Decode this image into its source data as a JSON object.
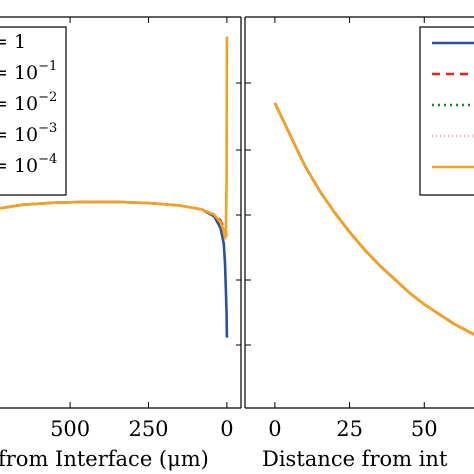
{
  "chart_data": [
    {
      "type": "line",
      "panel": "left",
      "xlabel": "from Interface (μm)",
      "x_ticks": [
        "500",
        "250",
        "0"
      ],
      "x_tick_values": [
        500,
        250,
        0
      ],
      "xlim": [
        730,
        -45
      ],
      "legend_placement": "top-left",
      "legend": [
        {
          "label_base": "= 1",
          "exponent": ""
        },
        {
          "label_base": "= 10",
          "exponent": "−1"
        },
        {
          "label_base": "= 10",
          "exponent": "−2"
        },
        {
          "label_base": "= 10",
          "exponent": "−3"
        },
        {
          "label_base": "= 10",
          "exponent": "−4"
        }
      ],
      "series": [
        {
          "color": "#2a4fa0",
          "dash": "",
          "x": [
            730,
            650,
            550,
            450,
            350,
            250,
            150,
            80,
            40,
            20,
            10,
            6,
            3,
            1,
            0
          ],
          "y": [
            0.51,
            0.52,
            0.525,
            0.527,
            0.527,
            0.524,
            0.518,
            0.508,
            0.49,
            0.46,
            0.42,
            0.37,
            0.3,
            0.24,
            0.18
          ]
        },
        {
          "color": "#e8231f",
          "dash": "8,6",
          "x": [
            730,
            650,
            550,
            450,
            350,
            250,
            150,
            80,
            40,
            20,
            10,
            5,
            2,
            0
          ],
          "y": [
            0.51,
            0.52,
            0.525,
            0.527,
            0.527,
            0.524,
            0.518,
            0.508,
            0.495,
            0.48,
            0.46,
            0.445,
            0.44,
            0.455
          ]
        },
        {
          "color": "#1a8a2a",
          "dash": "2,4",
          "x": [
            730,
            650,
            550,
            450,
            350,
            250,
            150,
            80,
            40,
            20,
            10,
            5,
            2,
            0
          ],
          "y": [
            0.51,
            0.52,
            0.525,
            0.527,
            0.527,
            0.524,
            0.518,
            0.508,
            0.495,
            0.475,
            0.455,
            0.44,
            0.45,
            0.66
          ]
        },
        {
          "color": "#f4a6b8",
          "dash": "1,3",
          "x": [
            730,
            650,
            550,
            450,
            350,
            250,
            150,
            80,
            40,
            20,
            10,
            5,
            2,
            0
          ],
          "y": [
            0.51,
            0.52,
            0.525,
            0.527,
            0.527,
            0.524,
            0.518,
            0.508,
            0.495,
            0.475,
            0.455,
            0.44,
            0.46,
            0.75
          ]
        },
        {
          "color": "#f5a220",
          "dash": "",
          "x": [
            730,
            650,
            550,
            450,
            350,
            250,
            150,
            80,
            40,
            20,
            10,
            6,
            3,
            1,
            0
          ],
          "y": [
            0.51,
            0.52,
            0.525,
            0.527,
            0.527,
            0.524,
            0.518,
            0.508,
            0.494,
            0.475,
            0.452,
            0.434,
            0.44,
            0.6,
            0.95
          ]
        }
      ]
    },
    {
      "type": "line",
      "panel": "right",
      "xlabel": "Distance from int",
      "x_ticks": [
        "0",
        "25",
        "50"
      ],
      "x_tick_values": [
        0,
        25,
        50
      ],
      "xlim": [
        -10,
        72
      ],
      "y_scale": "log",
      "legend_placement": "top-right",
      "series": [
        {
          "color": "#2a4fa0",
          "dash": "",
          "x": [
            0,
            5,
            10,
            15,
            20,
            25,
            30,
            35,
            40,
            45,
            50,
            55,
            60,
            65,
            70,
            72
          ],
          "y": [
            0.78,
            0.7,
            0.62,
            0.555,
            0.5,
            0.45,
            0.405,
            0.365,
            0.33,
            0.295,
            0.265,
            0.24,
            0.215,
            0.195,
            0.175,
            0.168
          ]
        },
        {
          "color": "#e8231f",
          "dash": "8,6",
          "x": [
            0,
            5,
            10,
            15,
            20,
            25,
            30,
            35,
            40,
            45,
            50,
            55,
            60,
            65,
            70,
            72
          ],
          "y": [
            0.78,
            0.7,
            0.62,
            0.555,
            0.5,
            0.45,
            0.405,
            0.365,
            0.33,
            0.295,
            0.265,
            0.24,
            0.215,
            0.195,
            0.175,
            0.168
          ]
        },
        {
          "color": "#1a8a2a",
          "dash": "2,4",
          "x": [
            0,
            5,
            10,
            15,
            20,
            25,
            30,
            35,
            40,
            45,
            50,
            55,
            60,
            65,
            70,
            72
          ],
          "y": [
            0.78,
            0.7,
            0.62,
            0.555,
            0.5,
            0.45,
            0.405,
            0.365,
            0.33,
            0.295,
            0.265,
            0.24,
            0.215,
            0.195,
            0.175,
            0.168
          ]
        },
        {
          "color": "#f4a6b8",
          "dash": "1,3",
          "x": [
            0,
            5,
            10,
            15,
            20,
            25,
            30,
            35,
            40,
            45,
            50,
            55,
            60,
            65,
            70,
            72
          ],
          "y": [
            0.78,
            0.7,
            0.62,
            0.555,
            0.5,
            0.45,
            0.405,
            0.365,
            0.33,
            0.295,
            0.265,
            0.24,
            0.215,
            0.195,
            0.175,
            0.168
          ]
        },
        {
          "color": "#f5a220",
          "dash": "",
          "x": [
            0,
            5,
            10,
            15,
            20,
            25,
            30,
            35,
            40,
            45,
            50,
            55,
            60,
            65,
            70,
            72
          ],
          "y": [
            0.78,
            0.7,
            0.62,
            0.555,
            0.5,
            0.45,
            0.405,
            0.365,
            0.33,
            0.295,
            0.265,
            0.24,
            0.215,
            0.195,
            0.175,
            0.168
          ]
        }
      ]
    }
  ]
}
